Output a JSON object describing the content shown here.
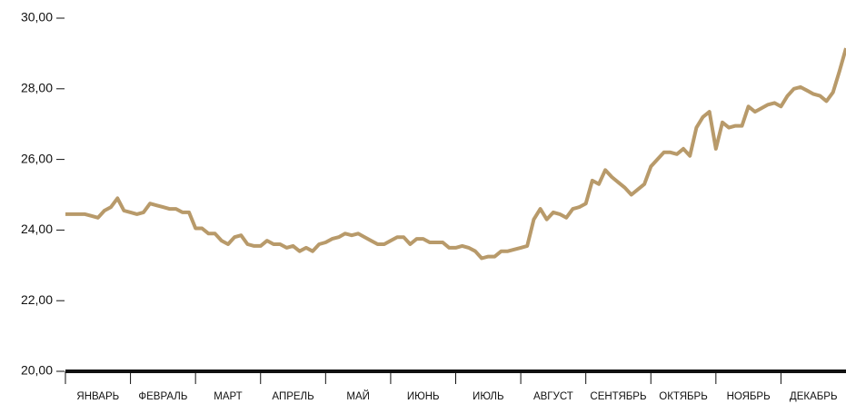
{
  "chart_data": {
    "type": "line",
    "categories": [
      "ЯНВАРЬ",
      "ФЕВРАЛЬ",
      "МАРТ",
      "АПРЕЛЬ",
      "МАЙ",
      "ИЮНЬ",
      "ИЮЛЬ",
      "АВГУСТ",
      "СЕНТЯБРЬ",
      "ОКТЯБРЬ",
      "НОЯБРЬ",
      "ДЕКАБРЬ"
    ],
    "x": [
      0,
      0.1,
      0.2,
      0.3,
      0.4,
      0.5,
      0.6,
      0.7,
      0.8,
      0.9,
      1,
      1.1,
      1.2,
      1.3,
      1.4,
      1.5,
      1.6,
      1.7,
      1.8,
      1.9,
      2,
      2.1,
      2.2,
      2.3,
      2.4,
      2.5,
      2.6,
      2.7,
      2.8,
      2.9,
      3,
      3.1,
      3.2,
      3.3,
      3.4,
      3.5,
      3.6,
      3.7,
      3.8,
      3.9,
      4,
      4.1,
      4.2,
      4.3,
      4.4,
      4.5,
      4.6,
      4.7,
      4.8,
      4.9,
      5,
      5.1,
      5.2,
      5.3,
      5.4,
      5.5,
      5.6,
      5.7,
      5.8,
      5.9,
      6,
      6.1,
      6.2,
      6.3,
      6.4,
      6.5,
      6.6,
      6.7,
      6.8,
      6.9,
      7,
      7.1,
      7.2,
      7.3,
      7.4,
      7.5,
      7.6,
      7.7,
      7.8,
      7.9,
      8,
      8.1,
      8.2,
      8.3,
      8.4,
      8.5,
      8.6,
      8.7,
      8.8,
      8.9,
      9,
      9.1,
      9.2,
      9.3,
      9.4,
      9.5,
      9.6,
      9.7,
      9.8,
      9.9,
      10,
      10.1,
      10.2,
      10.3,
      10.4,
      10.5,
      10.6,
      10.7,
      10.8,
      10.9,
      11,
      11.1,
      11.2,
      11.3,
      11.4,
      11.5,
      11.6,
      11.7,
      11.8,
      11.9,
      12
    ],
    "series": [
      {
        "color": "#b89a6a",
        "values": [
          24.45,
          24.45,
          24.45,
          24.45,
          24.4,
          24.35,
          24.55,
          24.65,
          24.9,
          24.55,
          24.5,
          24.45,
          24.5,
          24.75,
          24.7,
          24.65,
          24.6,
          24.6,
          24.5,
          24.5,
          24.05,
          24.05,
          23.9,
          23.9,
          23.7,
          23.6,
          23.8,
          23.85,
          23.6,
          23.55,
          23.55,
          23.7,
          23.6,
          23.6,
          23.5,
          23.55,
          23.4,
          23.5,
          23.4,
          23.6,
          23.65,
          23.75,
          23.8,
          23.9,
          23.85,
          23.9,
          23.8,
          23.7,
          23.6,
          23.6,
          23.7,
          23.8,
          23.8,
          23.6,
          23.75,
          23.75,
          23.65,
          23.65,
          23.65,
          23.5,
          23.5,
          23.55,
          23.5,
          23.4,
          23.2,
          23.25,
          23.25,
          23.4,
          23.4,
          23.45,
          23.5,
          23.55,
          24.3,
          24.6,
          24.3,
          24.5,
          24.45,
          24.35,
          24.6,
          24.65,
          24.75,
          25.4,
          25.3,
          25.7,
          25.5,
          25.35,
          25.2,
          25.0,
          25.15,
          25.3,
          25.8,
          26.0,
          26.2,
          26.2,
          26.15,
          26.3,
          26.1,
          26.9,
          27.2,
          27.35,
          26.3,
          27.05,
          26.9,
          26.95,
          26.95,
          27.5,
          27.35,
          27.45,
          27.55,
          27.6,
          27.5,
          27.8,
          28.0,
          28.05,
          27.95,
          27.85,
          27.8,
          27.65,
          27.9,
          28.5,
          29.15
        ]
      }
    ],
    "xlim": [
      0,
      12
    ],
    "ylim": [
      20,
      30
    ],
    "yticks": [
      {
        "value": 20,
        "label": "20,00"
      },
      {
        "value": 22,
        "label": "22,00"
      },
      {
        "value": 24,
        "label": "24,00"
      },
      {
        "value": 26,
        "label": "26,00"
      },
      {
        "value": 28,
        "label": "28,00"
      },
      {
        "value": 30,
        "label": "30,00"
      }
    ]
  }
}
